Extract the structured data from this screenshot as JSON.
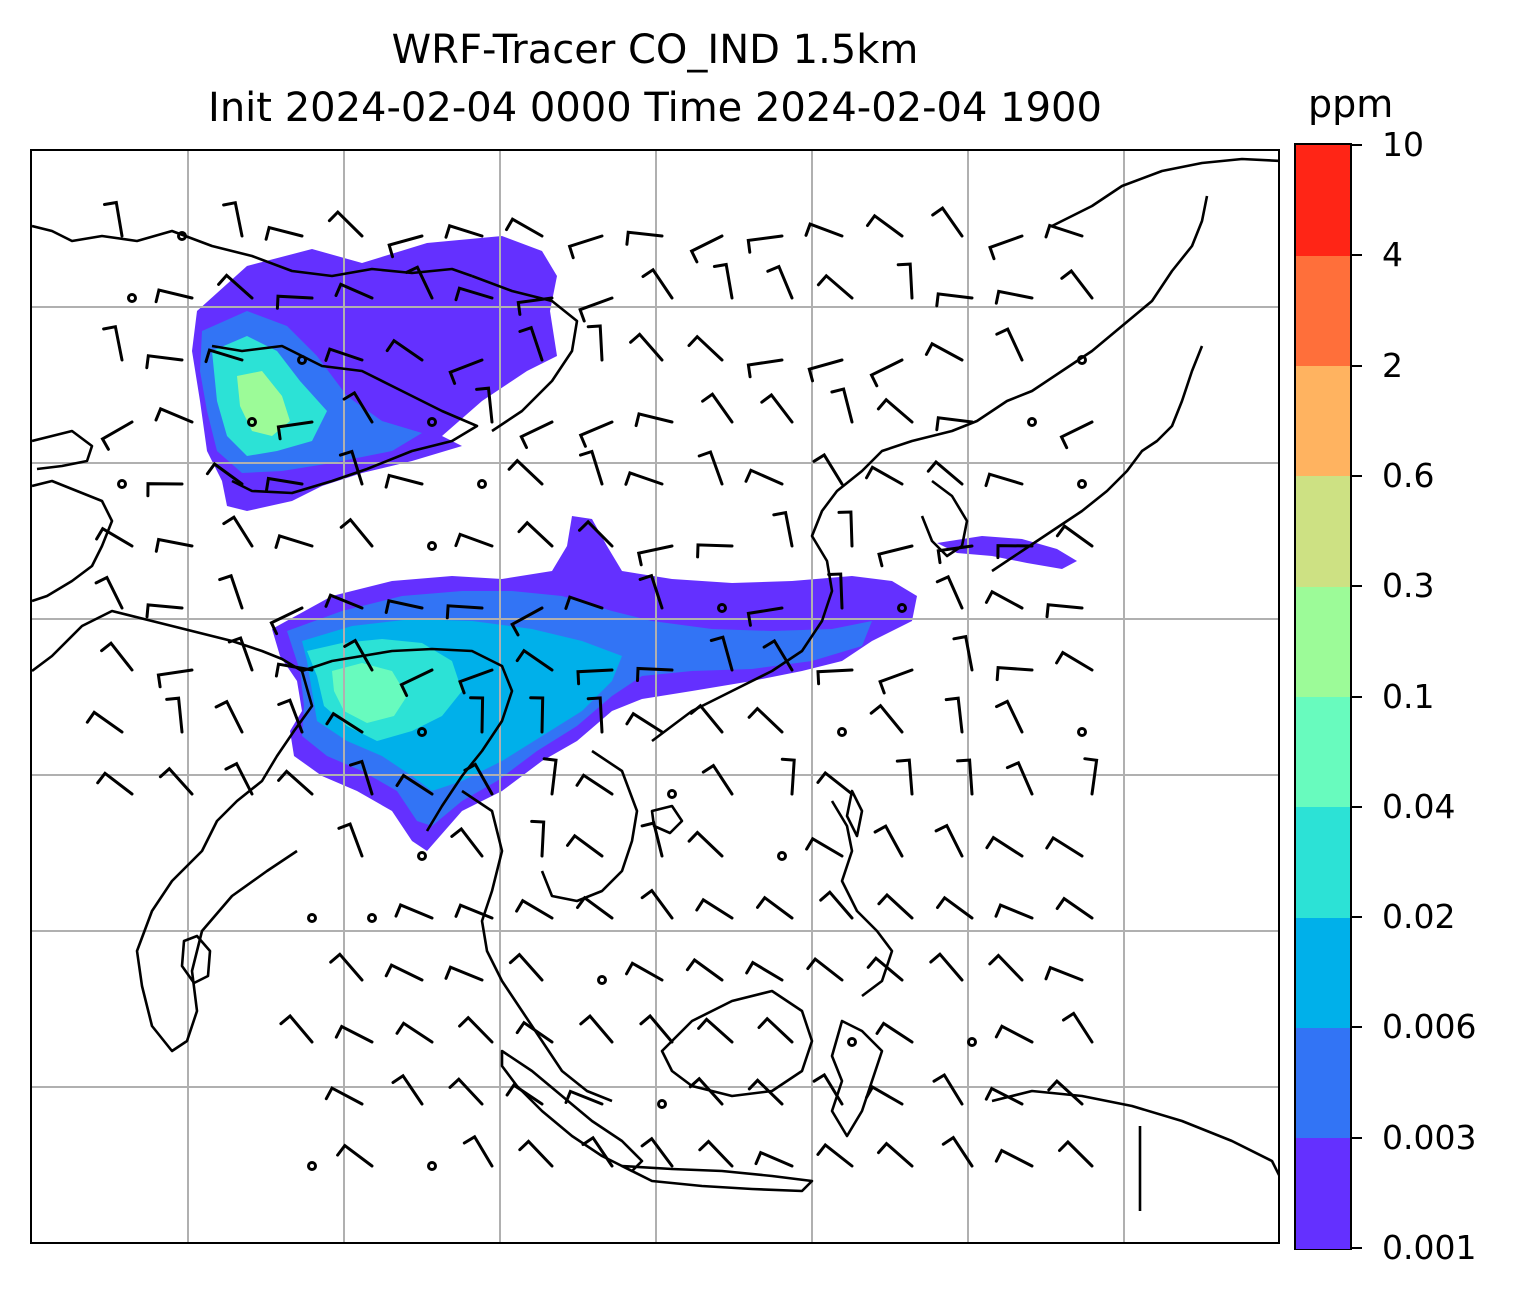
{
  "title": {
    "line1": "WRF-Tracer CO_IND 1.5km",
    "line2": "Init 2024-02-04 0000 Time 2024-02-04 1900"
  },
  "colorbar": {
    "unit": "ppm",
    "levels": [
      "0.001",
      "0.003",
      "0.006",
      "0.02",
      "0.04",
      "0.1",
      "0.3",
      "0.6",
      "2",
      "4",
      "10"
    ],
    "colors": [
      "#6430ff",
      "#3274f5",
      "#00b0ea",
      "#2ce2d6",
      "#68fbbe",
      "#9cfb98",
      "#cde183",
      "#ffb360",
      "#ff6f3a",
      "#ff2516"
    ]
  },
  "map": {
    "gridlines": true,
    "coastline_color": "#000000",
    "grid_color": "#b0b0b0",
    "field": "CO_IND tracer concentration",
    "overlay": "wind barbs"
  }
}
